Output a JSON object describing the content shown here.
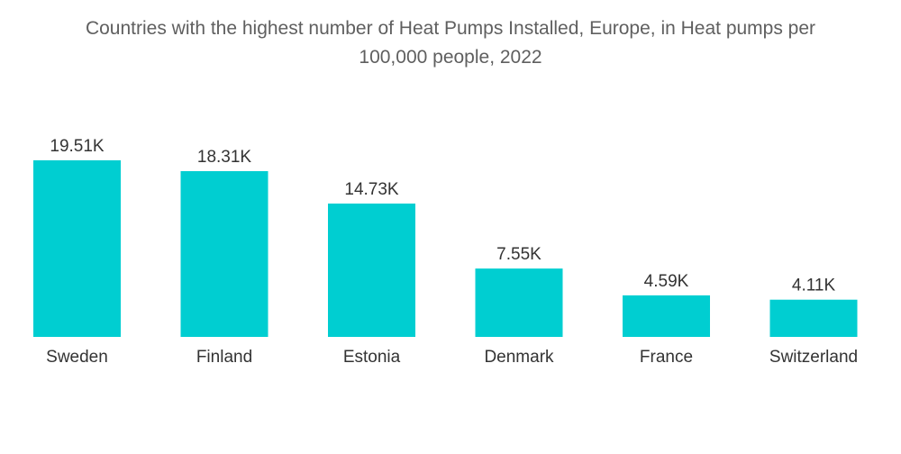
{
  "chart_data": {
    "type": "bar",
    "title": "Countries with the highest number of Heat Pumps Installed, Europe, in Heat pumps per 100,000 people, 2022",
    "title_lines": [
      "Countries with the highest number of Heat Pumps Installed, Europe, in Heat pumps per",
      "100,000 people, 2022"
    ],
    "categories": [
      "Sweden",
      "Finland",
      "Estonia",
      "Denmark",
      "France",
      "Switzerland"
    ],
    "values": [
      19510,
      18310,
      14730,
      7550,
      4590,
      4110
    ],
    "value_labels": [
      "19.51K",
      "18.31K",
      "14.73K",
      "7.55K",
      "4.59K",
      "4.11K"
    ],
    "ylim": [
      0,
      20000
    ],
    "grid": false,
    "legend": "none",
    "bar_color": "#00ced1"
  }
}
